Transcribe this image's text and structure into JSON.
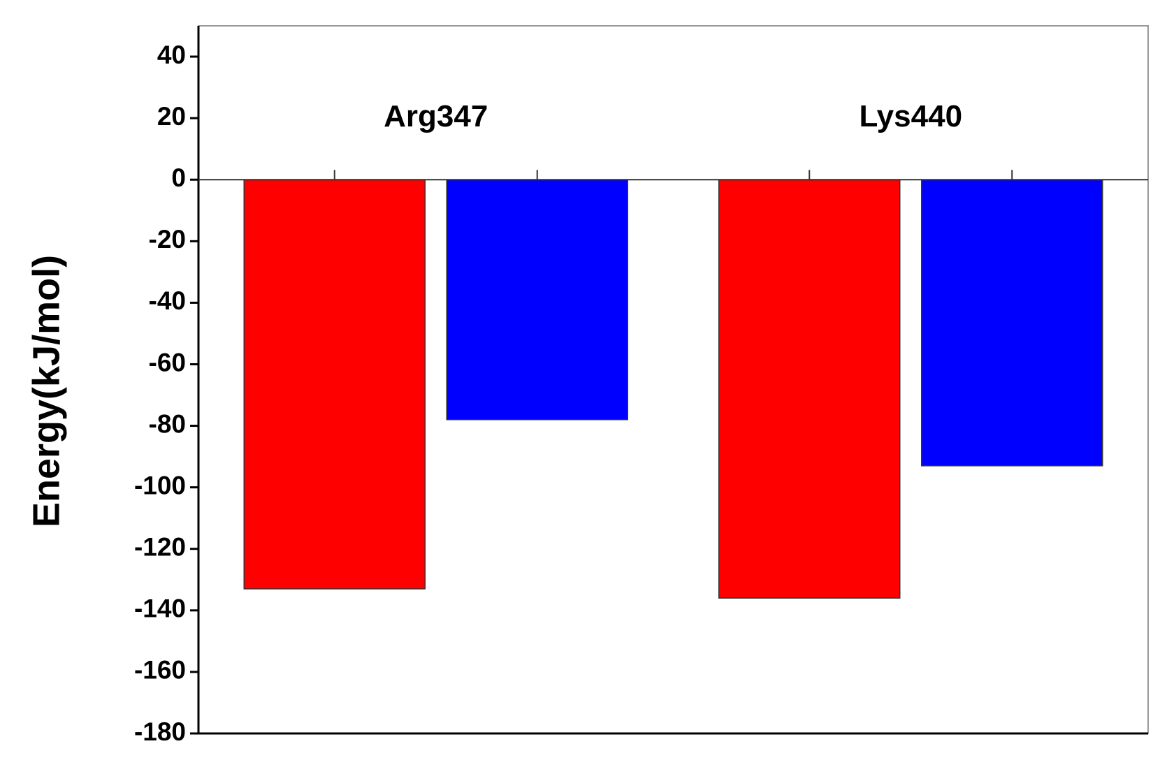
{
  "chart_data": {
    "type": "bar",
    "y_label": "Energy(kJ/mol)",
    "categories": [
      "Arg347",
      "Lys440"
    ],
    "series": [
      {
        "color": "#ff0000",
        "values": [
          -133,
          -136
        ]
      },
      {
        "color": "#0000ff",
        "values": [
          -78,
          -93
        ]
      }
    ],
    "ylim": [
      -180,
      50
    ],
    "yticks": [
      -180,
      -160,
      -140,
      -120,
      -100,
      -80,
      -60,
      -40,
      -20,
      0,
      20,
      40
    ]
  }
}
